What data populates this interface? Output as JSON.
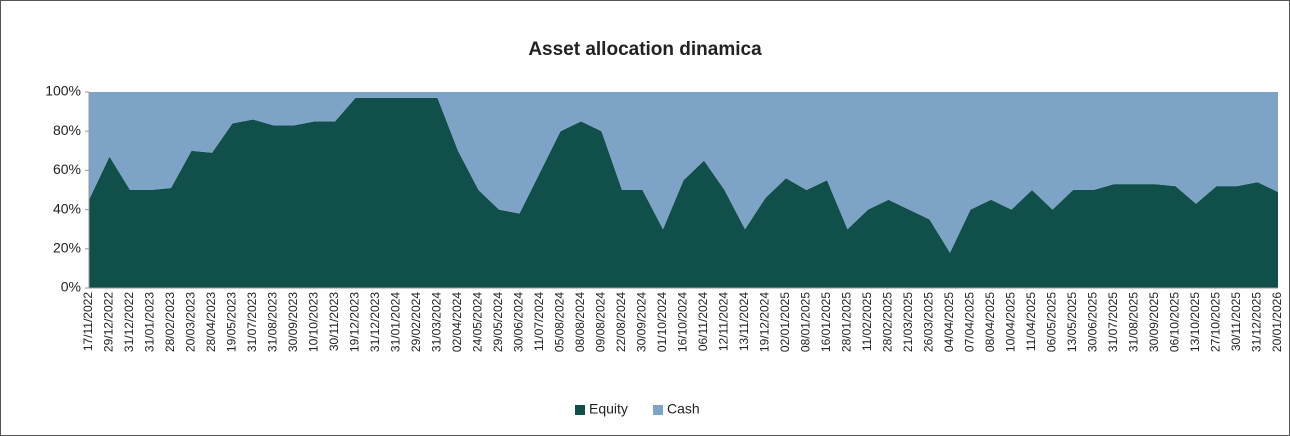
{
  "chart_data": {
    "type": "stacked_area",
    "title": "Asset allocation dinamica",
    "categories": [
      "17/11/2022",
      "29/12/2022",
      "31/12/2022",
      "31/01/2023",
      "28/02/2023",
      "20/03/2023",
      "28/04/2023",
      "19/05/2023",
      "31/07/2023",
      "31/08/2023",
      "30/09/2023",
      "10/10/2023",
      "30/11/2023",
      "19/12/2023",
      "31/12/2023",
      "31/01/2024",
      "29/02/2024",
      "31/03/2024",
      "02/04/2024",
      "24/05/2024",
      "29/05/2024",
      "30/06/2024",
      "11/07/2024",
      "05/08/2024",
      "08/08/2024",
      "09/08/2024",
      "22/08/2024",
      "30/09/2024",
      "01/10/2024",
      "16/10/2024",
      "06/11/2024",
      "12/11/2024",
      "13/11/2024",
      "19/12/2024",
      "02/01/2025",
      "08/01/2025",
      "16/01/2025",
      "28/01/2025",
      "11/02/2025",
      "28/02/2025",
      "21/03/2025",
      "26/03/2025",
      "04/04/2025",
      "07/04/2025",
      "08/04/2025",
      "10/04/2025",
      "11/04/2025",
      "06/05/2025",
      "13/05/2025",
      "30/06/2025",
      "31/07/2025",
      "31/08/2025",
      "30/09/2025",
      "06/10/2025",
      "13/10/2025",
      "27/10/2025",
      "30/11/2025",
      "31/12/2025",
      "20/01/2026"
    ],
    "series": [
      {
        "name": "Equity",
        "color": "#114f4b",
        "values": [
          45,
          67,
          50,
          50,
          51,
          70,
          69,
          84,
          86,
          83,
          83,
          85,
          85,
          97,
          97,
          97,
          97,
          97,
          70,
          50,
          40,
          38,
          59,
          80,
          85,
          80,
          50,
          50,
          30,
          55,
          65,
          50,
          30,
          46,
          56,
          50,
          55,
          30,
          40,
          45,
          40,
          35,
          18,
          40,
          45,
          40,
          50,
          40,
          50,
          50,
          53,
          53,
          53,
          52,
          43,
          52,
          52,
          54,
          49
        ]
      },
      {
        "name": "Cash",
        "color": "#7da3c6",
        "values": [
          55,
          33,
          50,
          50,
          49,
          30,
          31,
          16,
          14,
          17,
          17,
          15,
          15,
          3,
          3,
          3,
          3,
          3,
          30,
          50,
          60,
          62,
          41,
          20,
          15,
          20,
          50,
          50,
          70,
          45,
          35,
          50,
          70,
          54,
          44,
          50,
          45,
          70,
          60,
          55,
          60,
          65,
          82,
          60,
          55,
          60,
          50,
          60,
          50,
          50,
          47,
          47,
          47,
          48,
          57,
          48,
          48,
          46,
          51
        ]
      }
    ],
    "ylim": [
      0,
      100
    ],
    "yticks": [
      {
        "value": 0,
        "label": "0%"
      },
      {
        "value": 20,
        "label": "20%"
      },
      {
        "value": 40,
        "label": "40%"
      },
      {
        "value": 60,
        "label": "60%"
      },
      {
        "value": 80,
        "label": "80%"
      },
      {
        "value": 100,
        "label": "100%"
      }
    ],
    "legend": "bottom"
  }
}
